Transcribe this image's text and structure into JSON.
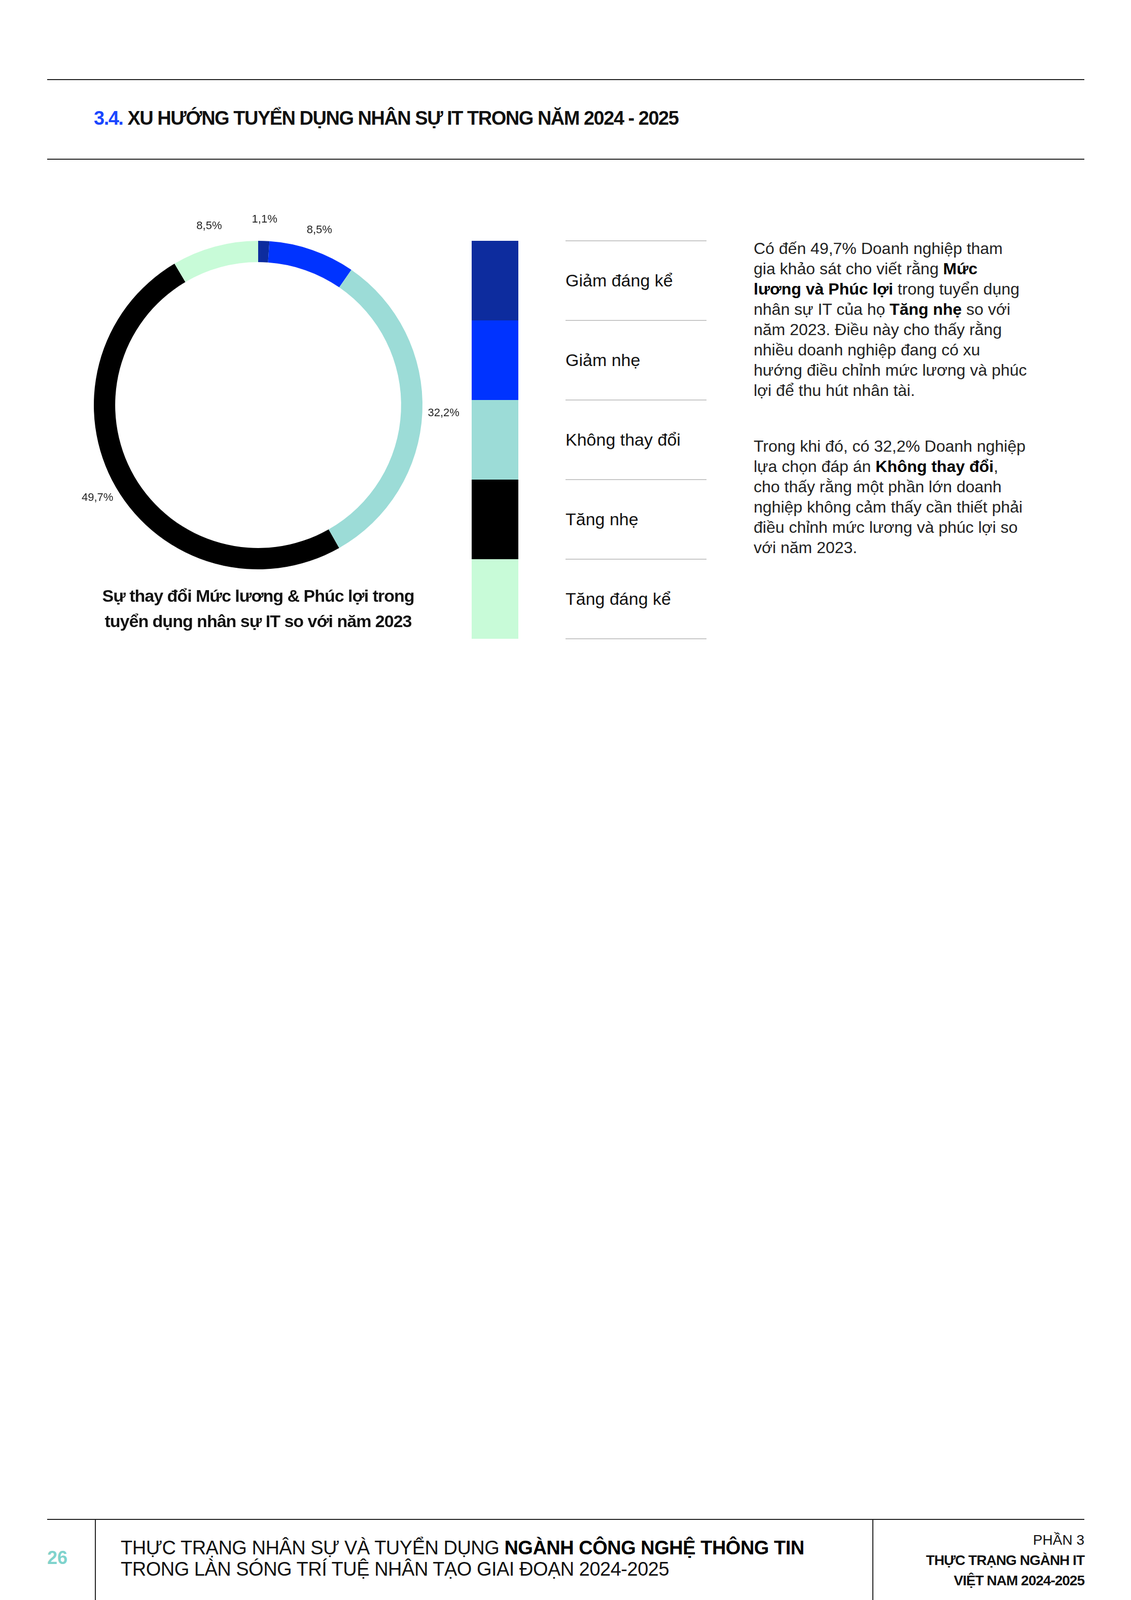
{
  "header": {
    "number": "3.4.",
    "title": "XU HƯỚNG TUYỂN DỤNG NHÂN SỰ IT TRONG NĂM 2024 - 2025"
  },
  "chart_data": {
    "type": "doughnut",
    "title": "Sự thay đổi Mức lương & Phúc lợi trong tuyển dụng nhân sự IT so với năm 2023",
    "categories": [
      "Giảm đáng kể",
      "Giảm nhẹ",
      "Không thay đổi",
      "Tăng nhẹ",
      "Tăng đáng kể"
    ],
    "values": [
      1.1,
      8.5,
      32.2,
      49.7,
      8.5
    ],
    "value_labels": [
      "1,1%",
      "8,5%",
      "32,2%",
      "49,7%",
      "8,5%"
    ],
    "colors": [
      "#0d2c9e",
      "#0033ff",
      "#9cdcd7",
      "#000000",
      "#c8fbd8"
    ],
    "data_labels": true,
    "legend": "right"
  },
  "paragraphs": [
    [
      {
        "text": "Có đến 49,7% Doanh nghiệp tham gia khảo sát cho viết rằng "
      },
      {
        "text": "Mức lương và Phúc lợi",
        "bold": true
      },
      {
        "text": " trong tuyển dụng nhân sự IT của họ "
      },
      {
        "text": "Tăng nhẹ",
        "bold": true
      },
      {
        "text": " so với năm 2023. Điều này cho thấy rằng nhiều doanh nghiệp đang có xu hướng điều chỉnh mức lương và phúc lợi để thu hút nhân tài."
      }
    ],
    [
      {
        "text": "Trong khi đó, có 32,2% Doanh nghiệp lựa chọn đáp án "
      },
      {
        "text": "Không thay đổi",
        "bold": true
      },
      {
        "text": ", cho thấy rằng một phần lớn doanh nghiệp không cảm thấy cần thiết phải điều chỉnh mức lương và phúc lợi so với năm 2023."
      }
    ]
  ],
  "footer": {
    "page": "26",
    "lines": [
      [
        {
          "text": "THỰC TRẠNG NHÂN SỰ VÀ TUYỂN DỤNG "
        },
        {
          "text": "NGÀNH CÔNG NGHỆ THÔNG TIN",
          "bold": true
        }
      ],
      [
        {
          "text": "TRONG LÀN SÓNG TRÍ TUỆ NHÂN TẠO GIAI ĐOẠN 2024-2025"
        }
      ]
    ],
    "section": [
      "PHẦN 3",
      "THỰC TRẠNG NGÀNH IT",
      "VIỆT NAM 2024-2025"
    ]
  }
}
